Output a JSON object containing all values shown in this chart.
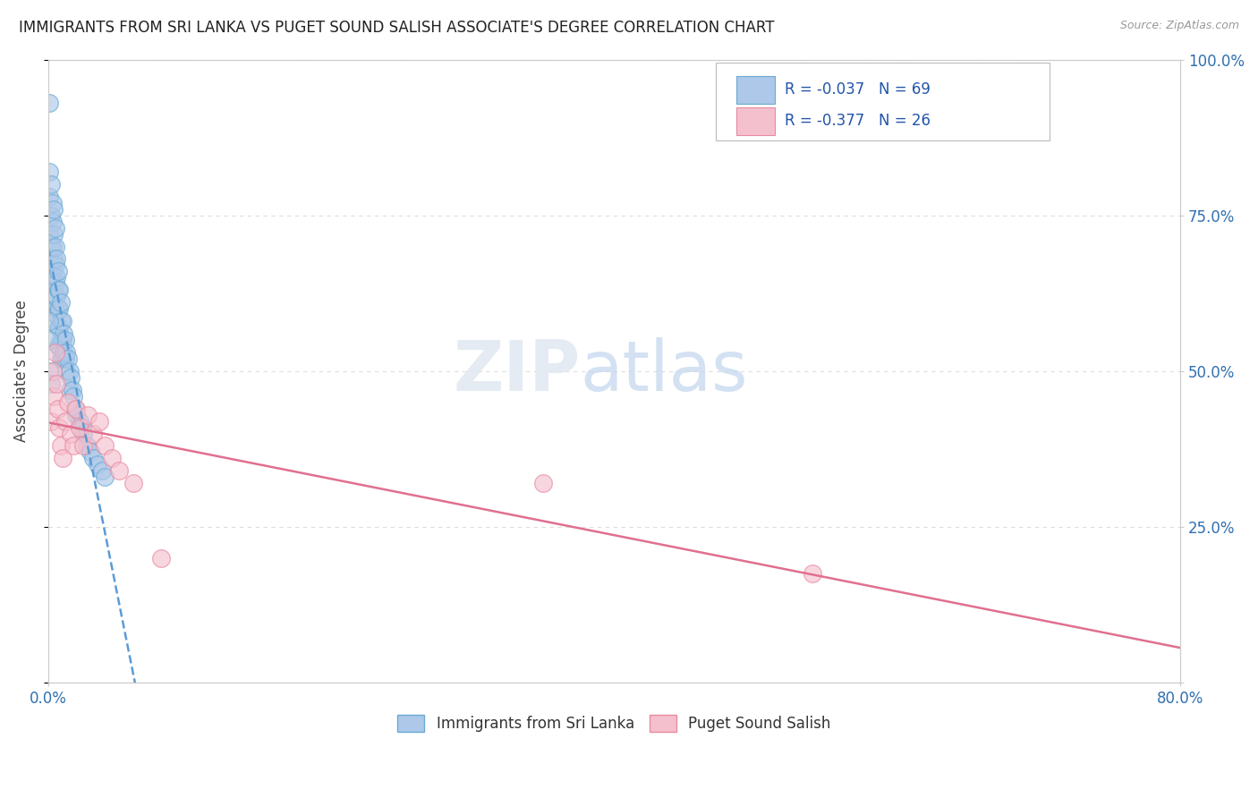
{
  "title": "IMMIGRANTS FROM SRI LANKA VS PUGET SOUND SALISH ASSOCIATE'S DEGREE CORRELATION CHART",
  "source_text": "Source: ZipAtlas.com",
  "ylabel": "Associate's Degree",
  "x_min": 0.0,
  "x_max": 0.8,
  "y_min": 0.0,
  "y_max": 1.0,
  "series1_label": "Immigrants from Sri Lanka",
  "series1_R": -0.037,
  "series1_N": 69,
  "series1_color": "#adc8e8",
  "series1_edge_color": "#6aaad4",
  "series1_line_color": "#5b9bd5",
  "series2_label": "Puget Sound Salish",
  "series2_R": -0.377,
  "series2_N": 26,
  "series2_color": "#f5c0ce",
  "series2_edge_color": "#e88aa0",
  "series2_line_color": "#e07090",
  "watermark_zip": "ZIP",
  "watermark_atlas": "atlas",
  "background_color": "#ffffff",
  "grid_color": "#dddddd",
  "blue_x": [
    0.001,
    0.001,
    0.001,
    0.001,
    0.002,
    0.002,
    0.002,
    0.003,
    0.003,
    0.003,
    0.003,
    0.003,
    0.004,
    0.004,
    0.004,
    0.004,
    0.004,
    0.005,
    0.005,
    0.005,
    0.005,
    0.005,
    0.006,
    0.006,
    0.006,
    0.006,
    0.007,
    0.007,
    0.007,
    0.007,
    0.007,
    0.008,
    0.008,
    0.008,
    0.008,
    0.009,
    0.009,
    0.009,
    0.009,
    0.01,
    0.01,
    0.01,
    0.011,
    0.011,
    0.012,
    0.012,
    0.013,
    0.013,
    0.014,
    0.015,
    0.015,
    0.016,
    0.017,
    0.018,
    0.019,
    0.02,
    0.022,
    0.024,
    0.025,
    0.027,
    0.03,
    0.032,
    0.035,
    0.038,
    0.04,
    0.001,
    0.001,
    0.001,
    0.002
  ],
  "blue_y": [
    0.93,
    0.82,
    0.78,
    0.72,
    0.8,
    0.75,
    0.7,
    0.77,
    0.74,
    0.7,
    0.67,
    0.64,
    0.76,
    0.72,
    0.68,
    0.65,
    0.62,
    0.73,
    0.7,
    0.67,
    0.64,
    0.6,
    0.68,
    0.65,
    0.62,
    0.59,
    0.66,
    0.63,
    0.6,
    0.57,
    0.54,
    0.63,
    0.6,
    0.57,
    0.54,
    0.61,
    0.58,
    0.55,
    0.52,
    0.58,
    0.55,
    0.52,
    0.56,
    0.53,
    0.55,
    0.52,
    0.53,
    0.5,
    0.52,
    0.5,
    0.47,
    0.49,
    0.47,
    0.46,
    0.44,
    0.43,
    0.42,
    0.41,
    0.4,
    0.38,
    0.37,
    0.36,
    0.35,
    0.34,
    0.33,
    0.58,
    0.55,
    0.5,
    0.48
  ],
  "pink_x": [
    0.002,
    0.003,
    0.004,
    0.005,
    0.006,
    0.007,
    0.008,
    0.009,
    0.01,
    0.012,
    0.014,
    0.016,
    0.018,
    0.02,
    0.022,
    0.025,
    0.028,
    0.032,
    0.036,
    0.04,
    0.045,
    0.05,
    0.06,
    0.08,
    0.35,
    0.54
  ],
  "pink_y": [
    0.42,
    0.5,
    0.46,
    0.53,
    0.48,
    0.44,
    0.41,
    0.38,
    0.36,
    0.42,
    0.45,
    0.4,
    0.38,
    0.44,
    0.41,
    0.38,
    0.43,
    0.4,
    0.42,
    0.38,
    0.36,
    0.34,
    0.32,
    0.2,
    0.32,
    0.175
  ]
}
